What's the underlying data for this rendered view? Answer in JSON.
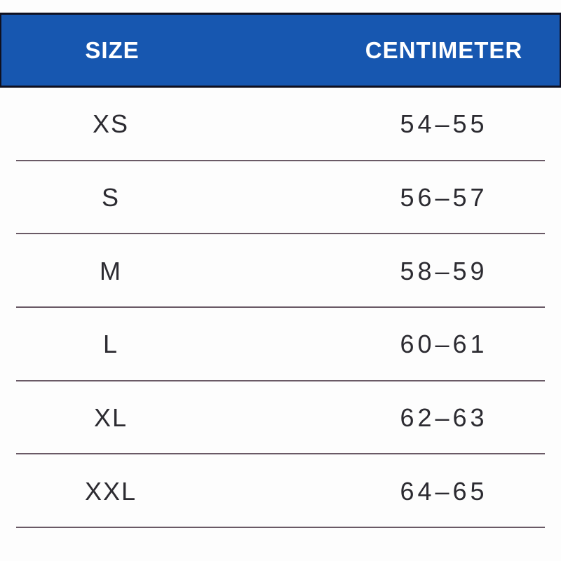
{
  "chart_data": {
    "type": "table",
    "title": "",
    "columns": [
      "SIZE",
      "CENTIMETER"
    ],
    "rows": [
      [
        "XS",
        "54–55"
      ],
      [
        "S",
        "56–57"
      ],
      [
        "M",
        "58–59"
      ],
      [
        "L",
        "60–61"
      ],
      [
        "XL",
        "62–63"
      ],
      [
        "XXL",
        "64–65"
      ]
    ],
    "unit": "cm",
    "layout": "two-column table, header band on blue, thin divider under every data row"
  },
  "colors": {
    "page_bg": "#fdfdfd",
    "header_bg": "#1757b0",
    "header_border": "#0f1020",
    "header_text": "#ffffff",
    "cell_text": "#2c2b31",
    "divider": "#503d4b"
  }
}
